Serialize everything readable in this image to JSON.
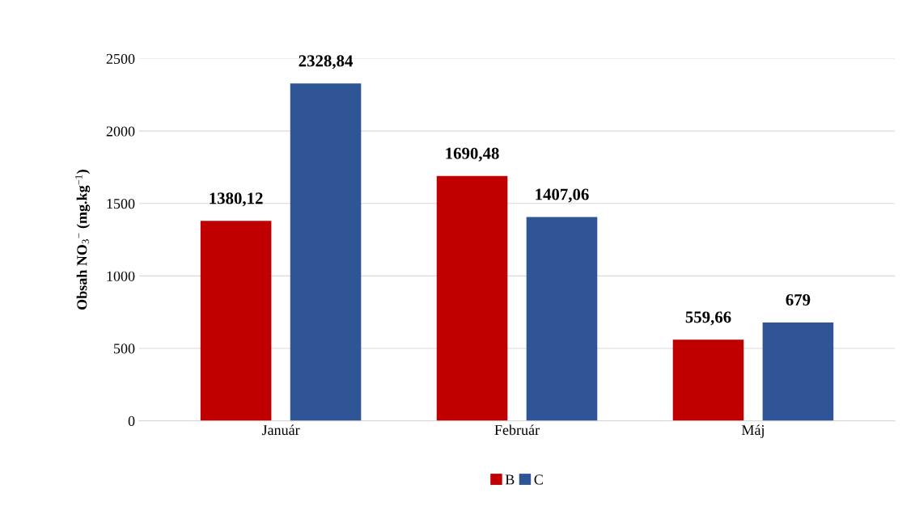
{
  "chart_data": {
    "type": "bar",
    "ylabel": "Obsah NO$_{3}$$^{−}$ (mg.kg$^{−1}$)",
    "categories": [
      "Január",
      "Február",
      "Máj"
    ],
    "series": [
      {
        "name": "B",
        "color": "#c00000",
        "values": [
          1380.12,
          1690.48,
          559.66
        ],
        "value_labels": [
          "1380,12",
          "1690,48",
          "559,66"
        ]
      },
      {
        "name": "C",
        "color": "#2f5597",
        "values": [
          2328.84,
          1407.06,
          679
        ],
        "value_labels": [
          "2328,84",
          "1407,06",
          "679"
        ]
      }
    ],
    "ylim": [
      0,
      2500
    ],
    "yticks": [
      0,
      500,
      1000,
      1500,
      2000,
      2500
    ],
    "grid": "y",
    "legend": "bottom"
  }
}
